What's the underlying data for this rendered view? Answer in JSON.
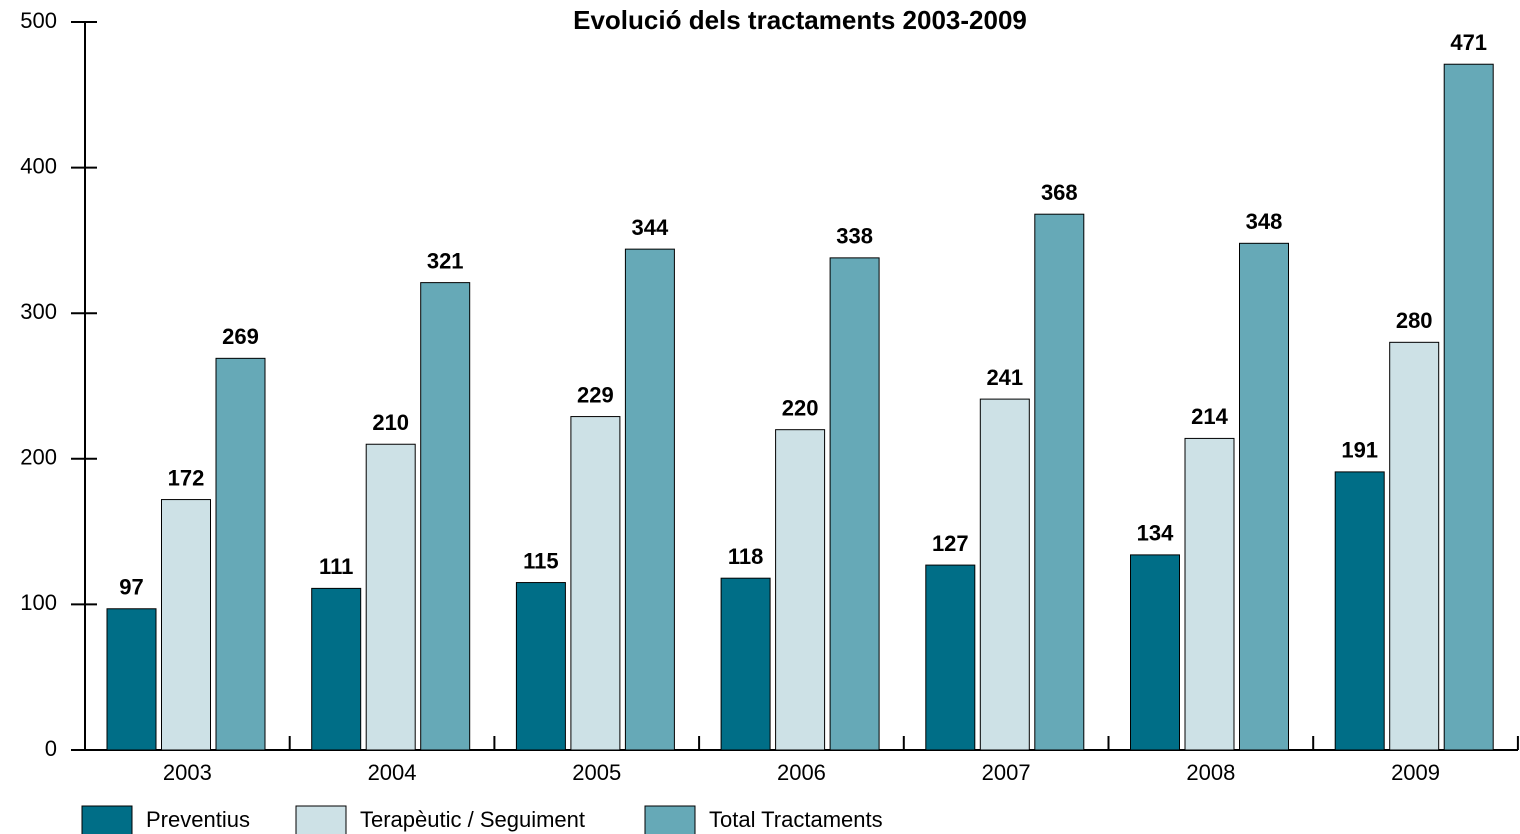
{
  "chart_data": {
    "type": "bar",
    "title": "Evolució dels tractaments 2003-2009",
    "categories": [
      "2003",
      "2004",
      "2005",
      "2006",
      "2007",
      "2008",
      "2009"
    ],
    "series": [
      {
        "name": "Preventius",
        "color": "#006e87",
        "values": [
          97,
          111,
          115,
          118,
          127,
          134,
          191
        ]
      },
      {
        "name": "Terapèutic / Seguiment",
        "color": "#cde1e6",
        "values": [
          172,
          210,
          229,
          220,
          241,
          214,
          280
        ]
      },
      {
        "name": "Total Tractaments",
        "color": "#66a9b7",
        "values": [
          269,
          321,
          344,
          338,
          368,
          348,
          471
        ]
      }
    ],
    "ylim": [
      0,
      500
    ],
    "yticks": [
      0,
      100,
      200,
      300,
      400,
      500
    ],
    "legend": "bottom"
  }
}
